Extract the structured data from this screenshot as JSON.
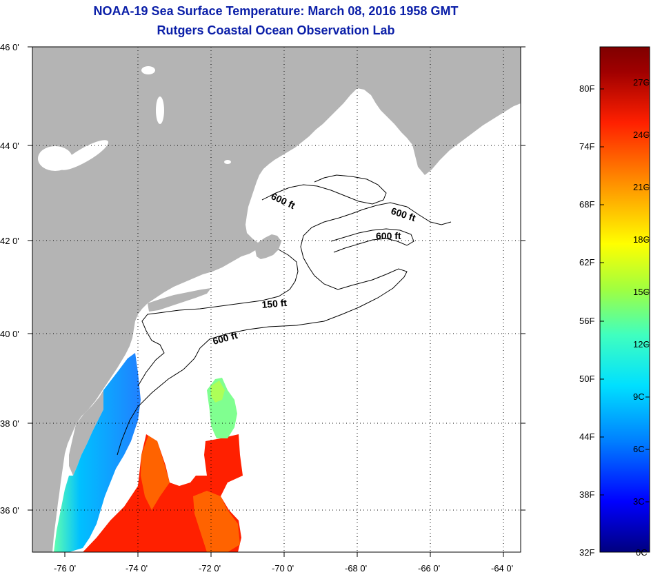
{
  "title": {
    "line1": "NOAA-19 Sea Surface Temperature:  March 08, 2016 1958 GMT",
    "line2": "Rutgers Coastal Ocean Observation Lab"
  },
  "map": {
    "lat_labels": [
      "46 0'",
      "44 0'",
      "42 0'",
      "40 0'",
      "38 0'",
      "36 0'"
    ],
    "lon_labels": [
      "-76 0'",
      "-74 0'",
      "-72 0'",
      "-70 0'",
      "-68 0'",
      "-66 0'",
      "-64 0'"
    ],
    "contour_labels": [
      "600 ft",
      "600 ft",
      "600 ft",
      "150 ft",
      "600 ft"
    ],
    "colors": {
      "land": "#b4b4b4",
      "ocean": "#ffffff",
      "title": "#0b1fa8"
    }
  },
  "colorbar": {
    "fahrenheit_labels": [
      "80F",
      "74F",
      "68F",
      "62F",
      "56F",
      "50F",
      "44F",
      "38F",
      "32F"
    ],
    "celsius_labels": [
      "27C",
      "24C",
      "21C",
      "18C",
      "15C",
      "12C",
      "9C",
      "6C",
      "3C",
      "0C"
    ],
    "stops": [
      "#00007f",
      "#0000ff",
      "#0080ff",
      "#00e0ff",
      "#40ffbf",
      "#a0ff40",
      "#ffff00",
      "#ff9000",
      "#ff2000",
      "#a00000",
      "#7f0000"
    ]
  }
}
